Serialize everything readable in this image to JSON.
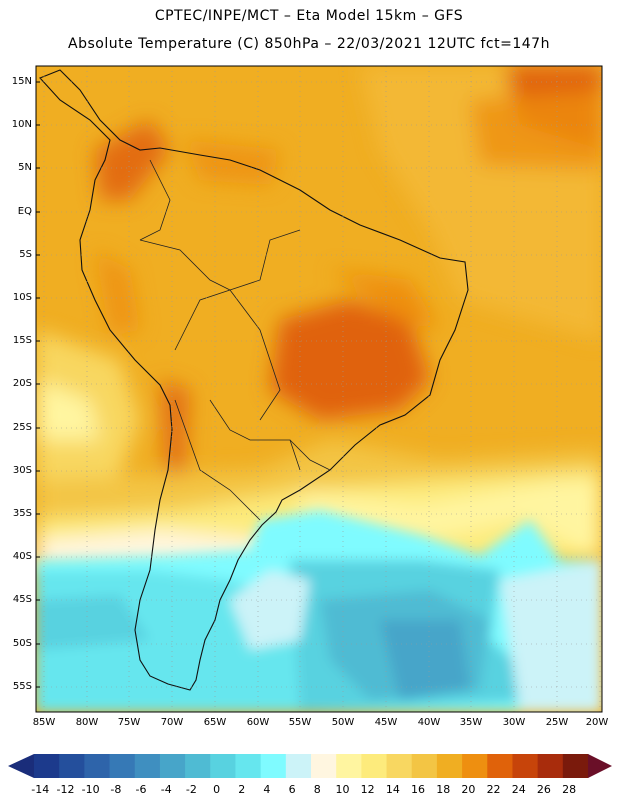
{
  "header": {
    "line1": "CPTEC/INPE/MCT –  Eta Model 15km – GFS",
    "line2": "Absolute Temperature (C) 850hPa – 22/03/2021 12UTC fct=147h"
  },
  "map": {
    "lat_labels": [
      "15N",
      "10N",
      "5N",
      "EQ",
      "5S",
      "10S",
      "15S",
      "20S",
      "25S",
      "30S",
      "35S",
      "40S",
      "45S",
      "50S",
      "55S"
    ],
    "lon_labels": [
      "85W",
      "80W",
      "75W",
      "70W",
      "65W",
      "60W",
      "55W",
      "50W",
      "45W",
      "40W",
      "35W",
      "30W",
      "25W",
      "20W"
    ]
  },
  "colorbar": {
    "labels": [
      "-14",
      "-12",
      "-10",
      "-8",
      "-6",
      "-4",
      "-2",
      "0",
      "2",
      "4",
      "6",
      "8",
      "10",
      "12",
      "14",
      "16",
      "18",
      "20",
      "22",
      "24",
      "26",
      "28"
    ],
    "colors": [
      "#1c3a8c",
      "#244f9c",
      "#2e64aa",
      "#3679b6",
      "#3f8fc0",
      "#47a5c9",
      "#4fbbd3",
      "#58d2e0",
      "#66e6ee",
      "#7ffbff",
      "#ccf3f8",
      "#fff6e0",
      "#fff5a0",
      "#fdeb7c",
      "#f8d761",
      "#f3c544",
      "#f0ae22",
      "#ee8f10",
      "#e0620a",
      "#c7440a",
      "#a82c0c",
      "#7a1a0c"
    ],
    "low_arrow_color": "#1a2d7a",
    "high_arrow_color": "#6a0f28"
  }
}
